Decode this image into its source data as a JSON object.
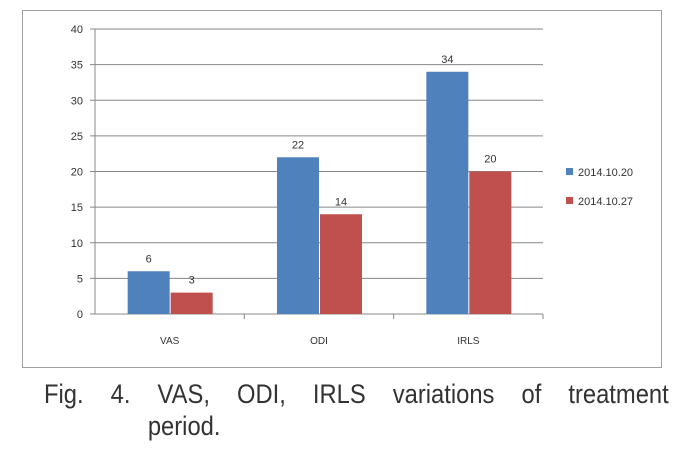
{
  "chart_data": {
    "type": "bar",
    "title": "",
    "categories": [
      "VAS",
      "ODI",
      "IRLS"
    ],
    "series": [
      {
        "name": "2014.10.20",
        "values": [
          6,
          22,
          34
        ],
        "color": "#4f81bd"
      },
      {
        "name": "2014.10.27",
        "values": [
          3,
          14,
          20
        ],
        "color": "#c0504d"
      }
    ],
    "ylim": [
      0,
      40
    ],
    "yticks": [
      0,
      5,
      10,
      15,
      20,
      25,
      30,
      35,
      40
    ],
    "grid": true,
    "legend": "right",
    "xlabel": "",
    "ylabel": ""
  },
  "caption": {
    "line1": [
      "Fig.",
      "4.",
      "VAS,",
      "ODI,",
      "IRLS",
      "variations",
      "of",
      "treatment"
    ],
    "line2": "period."
  }
}
